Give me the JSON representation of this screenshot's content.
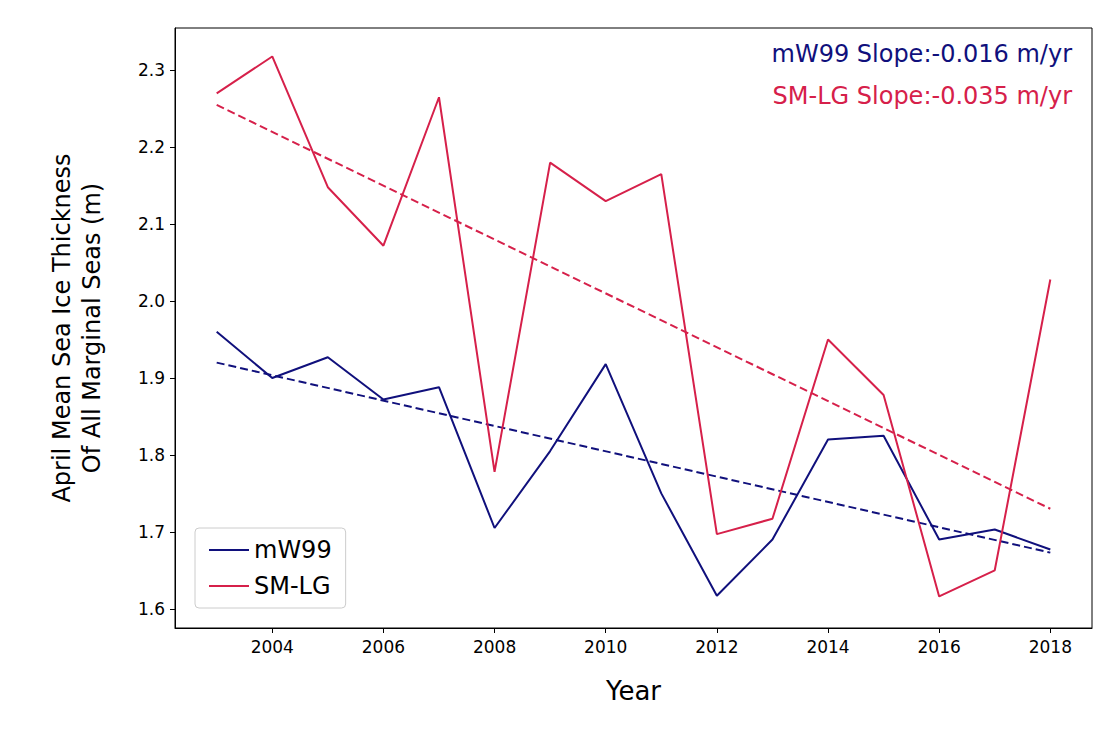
{
  "chart_data": {
    "type": "line",
    "x_label": "Year",
    "y_label": "April Mean Sea Ice Thickness\nOf All Marginal Seas (m)",
    "x": [
      2003,
      2004,
      2005,
      2006,
      2007,
      2008,
      2009,
      2010,
      2011,
      2012,
      2013,
      2014,
      2015,
      2016,
      2017,
      2018
    ],
    "series": [
      {
        "name": "mW99",
        "color": "#10107c",
        "line_style": "solid",
        "values": [
          1.96,
          1.9,
          1.927,
          1.872,
          1.888,
          1.705,
          1.805,
          1.918,
          1.75,
          1.617,
          1.69,
          1.82,
          1.825,
          1.69,
          1.703,
          1.677
        ],
        "trend": {
          "x": [
            2003,
            2018
          ],
          "values": [
            1.92,
            1.673
          ],
          "line_style": "dashed"
        }
      },
      {
        "name": "SM-LG",
        "color": "#d6204a",
        "line_style": "solid",
        "values": [
          2.27,
          2.318,
          2.148,
          2.072,
          2.265,
          1.778,
          2.18,
          2.13,
          2.165,
          1.697,
          1.717,
          1.95,
          1.878,
          1.616,
          1.65,
          2.028
        ],
        "trend": {
          "x": [
            2003,
            2018
          ],
          "values": [
            2.255,
            1.73
          ],
          "line_style": "dashed"
        }
      }
    ],
    "annotations": [
      {
        "text": "mW99 Slope:-0.016 m/yr",
        "color": "#10107c"
      },
      {
        "text": "SM-LG Slope:-0.035 m/yr",
        "color": "#d6204a"
      }
    ],
    "xlim": [
      2002.25,
      2018.75
    ],
    "xticks": [
      2004,
      2006,
      2008,
      2010,
      2012,
      2014,
      2016,
      2018
    ],
    "ylim": [
      1.575,
      2.355
    ],
    "yticks": [
      {
        "value": 1.6,
        "label": "1.6"
      },
      {
        "value": 1.7,
        "label": "1.7"
      },
      {
        "value": 1.8,
        "label": "1.8"
      },
      {
        "value": 1.9,
        "label": "1.9"
      },
      {
        "value": 2.0,
        "label": "2.0"
      },
      {
        "value": 2.1,
        "label": "2.1"
      },
      {
        "value": 2.2,
        "label": "2.2"
      },
      {
        "value": 2.3,
        "label": "2.3"
      }
    ],
    "grid": false,
    "legend": "lower left"
  }
}
